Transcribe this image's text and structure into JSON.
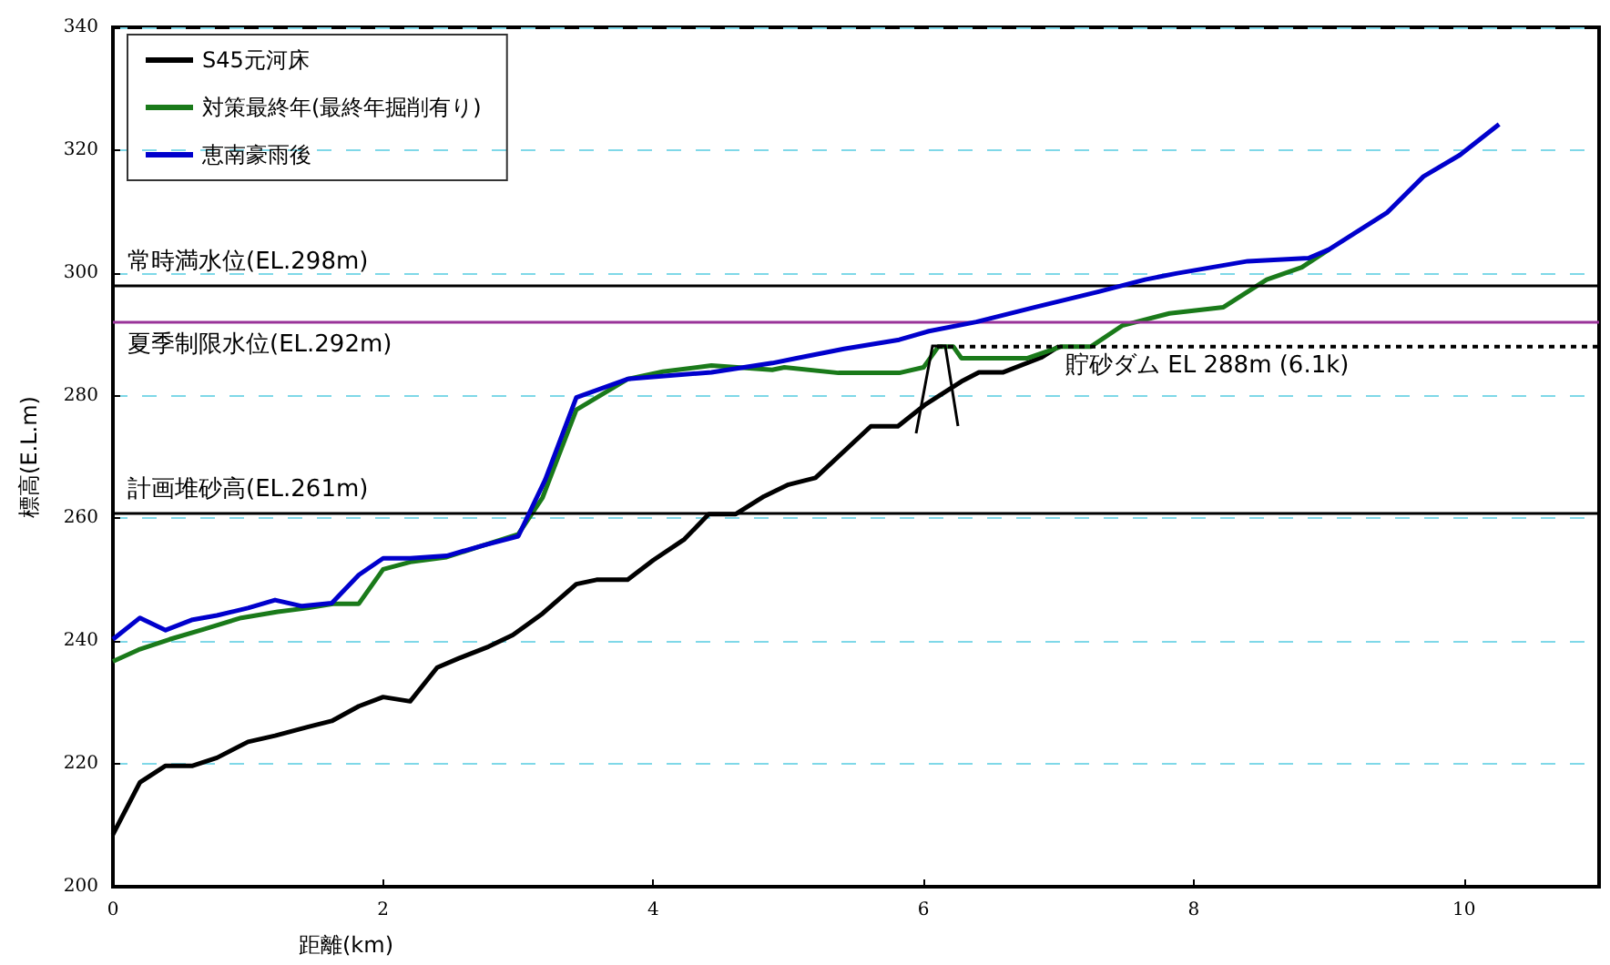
{
  "chart_data": {
    "type": "line",
    "xlabel": "距離(km)",
    "ylabel": "標高(E.L.m)",
    "xlim": [
      0,
      11
    ],
    "xticks": [
      0,
      2,
      4,
      6,
      8,
      10
    ],
    "ylim": [
      200,
      340
    ],
    "yticks": [
      200,
      220,
      240,
      260,
      280,
      300,
      320,
      340
    ],
    "grid": "y",
    "legend": "top left",
    "marker": "none",
    "line_style": "solid",
    "series": [
      {
        "name": "S45元河床",
        "color": "#000000",
        "x": [
          0,
          0.2,
          0.39,
          0.59,
          0.77,
          1.0,
          1.2,
          1.44,
          1.62,
          1.82,
          2.0,
          2.2,
          2.4,
          2.56,
          2.78,
          2.96,
          3.18,
          3.43,
          3.58,
          3.81,
          4.0,
          4.23,
          4.41,
          4.61,
          4.82,
          5.0,
          5.2,
          5.61,
          5.81,
          6.01,
          6.28,
          6.41,
          6.59,
          6.87,
          7.0
        ],
        "values": [
          208.5,
          217,
          219.7,
          219.7,
          221,
          223.6,
          224.6,
          226,
          227,
          229.4,
          230.9,
          230.2,
          235.7,
          237.2,
          239.1,
          241,
          244.5,
          249.3,
          250,
          250,
          253.2,
          256.6,
          260.7,
          260.7,
          263.6,
          265.5,
          266.6,
          275,
          275,
          278.5,
          282.3,
          283.8,
          283.8,
          286.2,
          288
        ]
      },
      {
        "name": "対策最終年(最終年掘削有り)",
        "color": "#1a7a1a",
        "x": [
          0,
          0.19,
          0.42,
          0.68,
          0.95,
          1.22,
          1.44,
          1.64,
          1.82,
          2.0,
          2.2,
          2.47,
          2.74,
          3.0,
          3.18,
          3.43,
          3.81,
          4.07,
          4.43,
          4.88,
          4.97,
          5.37,
          5.82,
          6.0,
          6.11,
          6.22,
          6.28,
          6.77,
          7.02,
          7.24,
          7.47,
          7.82,
          8.22,
          8.54,
          8.8,
          9.0
        ],
        "values": [
          236.7,
          238.6,
          240.3,
          242,
          243.8,
          244.8,
          245.4,
          246.1,
          246.1,
          251.7,
          252.9,
          253.7,
          255.6,
          257.4,
          263.4,
          277.7,
          282.7,
          283.9,
          284.9,
          284.2,
          284.6,
          283.7,
          283.7,
          284.6,
          288,
          288,
          286.1,
          286.1,
          288,
          288,
          291.4,
          293.4,
          294.4,
          298.9,
          300.9,
          303.8
        ]
      },
      {
        "color": "#000000",
        "line_style": "dotted",
        "x": [
          6.1,
          11
        ],
        "values": [
          288,
          288
        ]
      },
      {
        "name": "恵南豪雨後",
        "color": "#0000cc",
        "x": [
          0,
          0.2,
          0.39,
          0.59,
          0.77,
          1.0,
          1.2,
          1.4,
          1.62,
          1.82,
          2.0,
          2.2,
          2.47,
          2.74,
          3.0,
          3.2,
          3.43,
          3.81,
          4.43,
          4.88,
          5.06,
          5.41,
          5.82,
          6.04,
          6.39,
          6.84,
          7.29,
          7.64,
          7.87,
          8.4,
          8.85,
          9.0,
          9.43,
          9.7,
          9.97,
          10.26
        ],
        "values": [
          240.3,
          243.8,
          241.8,
          243.5,
          244.2,
          245.4,
          246.7,
          245.7,
          246.2,
          250.8,
          253.5,
          253.5,
          253.9,
          255.6,
          257.1,
          266.3,
          279.7,
          282.7,
          283.8,
          285.3,
          286.1,
          287.6,
          289.1,
          290.5,
          292,
          294.5,
          296.9,
          298.9,
          299.9,
          301.9,
          302.4,
          303.8,
          309.8,
          315.7,
          319.2,
          324.2
        ]
      }
    ],
    "ref_lines": [
      {
        "axis": "y",
        "value": 298,
        "label": "常時満水位(EL.298m)",
        "color": "#000000"
      },
      {
        "axis": "y",
        "value": 292,
        "label": "夏季制限水位(EL.292m)",
        "color": "#993399"
      },
      {
        "axis": "y",
        "value": 261,
        "label": "計画堆砂高(EL.261m)",
        "color": "#000000"
      }
    ],
    "annotations": [
      {
        "text": "貯砂ダム EL 288m (6.1k)",
        "x": 8.1,
        "y": 288
      }
    ]
  }
}
